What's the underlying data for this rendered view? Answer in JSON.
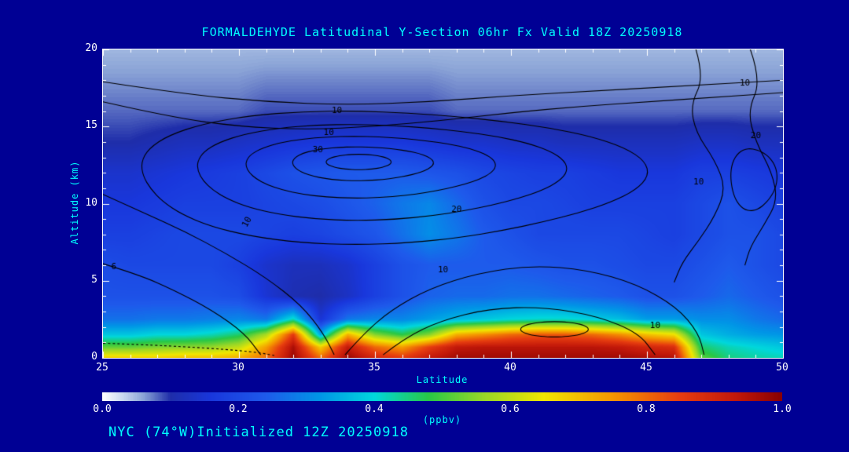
{
  "colors": {
    "background": "#000094",
    "frame": "#ffffff",
    "title_text": "#00ffff",
    "tick_text": "#ffffff",
    "axis_label_text": "#00ffff",
    "contour_line": "#000000"
  },
  "footer": {
    "annotation": "NYC (74°W)Initialized 12Z 20250918"
  },
  "chart_data": {
    "type": "heatmap",
    "title": "FORMALDEHYDE Latitudinal Y-Section 06hr  Fx Valid 18Z 20250918",
    "xlabel": "Latitude",
    "ylabel": "Altitude (km)",
    "units": "ppbv",
    "xlim": [
      25,
      50
    ],
    "ylim": [
      0,
      20
    ],
    "x_ticks": [
      25,
      30,
      35,
      40,
      45,
      50
    ],
    "y_ticks": [
      0,
      5,
      10,
      15,
      20
    ],
    "x_minor_step": 1,
    "y_minor_step": 1,
    "lats": [
      25,
      26,
      27,
      28,
      29,
      30,
      31,
      32,
      33,
      34,
      35,
      36,
      37,
      38,
      39,
      40,
      41,
      42,
      43,
      44,
      45,
      46,
      47,
      48,
      49,
      50
    ],
    "alt_levels_km": [
      0,
      0.7,
      1.5,
      2.5,
      4,
      6,
      8,
      10,
      12,
      14,
      16,
      20
    ],
    "values_ppbv_by_level": [
      [
        0.68,
        0.68,
        0.68,
        0.7,
        0.7,
        0.72,
        0.8,
        0.98,
        0.8,
        0.98,
        0.9,
        0.86,
        0.93,
        0.97,
        0.97,
        0.97,
        0.97,
        0.97,
        0.97,
        0.97,
        0.96,
        0.95,
        0.52,
        0.45,
        0.43,
        0.42
      ],
      [
        0.52,
        0.52,
        0.54,
        0.55,
        0.56,
        0.6,
        0.74,
        0.96,
        0.68,
        0.93,
        0.8,
        0.74,
        0.85,
        0.93,
        0.94,
        0.94,
        0.94,
        0.94,
        0.94,
        0.93,
        0.9,
        0.88,
        0.46,
        0.42,
        0.4,
        0.38
      ],
      [
        0.38,
        0.38,
        0.4,
        0.4,
        0.42,
        0.46,
        0.58,
        0.86,
        0.34,
        0.72,
        0.55,
        0.48,
        0.55,
        0.72,
        0.76,
        0.8,
        0.82,
        0.82,
        0.8,
        0.76,
        0.7,
        0.66,
        0.38,
        0.35,
        0.33,
        0.32
      ],
      [
        0.27,
        0.27,
        0.28,
        0.28,
        0.29,
        0.3,
        0.28,
        0.42,
        0.15,
        0.28,
        0.3,
        0.3,
        0.33,
        0.36,
        0.38,
        0.4,
        0.41,
        0.41,
        0.39,
        0.37,
        0.33,
        0.33,
        0.31,
        0.31,
        0.28,
        0.26
      ],
      [
        0.22,
        0.22,
        0.22,
        0.22,
        0.22,
        0.21,
        0.15,
        0.11,
        0.1,
        0.13,
        0.18,
        0.22,
        0.25,
        0.26,
        0.26,
        0.27,
        0.27,
        0.26,
        0.25,
        0.24,
        0.22,
        0.22,
        0.24,
        0.26,
        0.24,
        0.22
      ],
      [
        0.21,
        0.2,
        0.2,
        0.2,
        0.2,
        0.18,
        0.14,
        0.12,
        0.12,
        0.14,
        0.18,
        0.22,
        0.24,
        0.24,
        0.24,
        0.24,
        0.23,
        0.22,
        0.22,
        0.21,
        0.2,
        0.2,
        0.22,
        0.24,
        0.22,
        0.2
      ],
      [
        0.18,
        0.18,
        0.19,
        0.2,
        0.2,
        0.2,
        0.19,
        0.18,
        0.19,
        0.21,
        0.23,
        0.27,
        0.31,
        0.28,
        0.24,
        0.22,
        0.2,
        0.2,
        0.2,
        0.2,
        0.19,
        0.18,
        0.2,
        0.22,
        0.22,
        0.2
      ],
      [
        0.16,
        0.16,
        0.17,
        0.18,
        0.18,
        0.18,
        0.19,
        0.2,
        0.21,
        0.23,
        0.25,
        0.28,
        0.3,
        0.26,
        0.22,
        0.2,
        0.2,
        0.19,
        0.18,
        0.18,
        0.18,
        0.18,
        0.2,
        0.22,
        0.2,
        0.18
      ],
      [
        0.14,
        0.14,
        0.15,
        0.16,
        0.17,
        0.18,
        0.2,
        0.22,
        0.23,
        0.24,
        0.24,
        0.24,
        0.23,
        0.22,
        0.2,
        0.19,
        0.18,
        0.18,
        0.17,
        0.16,
        0.16,
        0.16,
        0.18,
        0.18,
        0.17,
        0.16
      ],
      [
        0.1,
        0.1,
        0.11,
        0.12,
        0.12,
        0.13,
        0.14,
        0.15,
        0.16,
        0.16,
        0.16,
        0.16,
        0.15,
        0.14,
        0.14,
        0.13,
        0.13,
        0.12,
        0.12,
        0.12,
        0.12,
        0.12,
        0.13,
        0.13,
        0.12,
        0.12
      ],
      [
        0.08,
        0.08,
        0.08,
        0.08,
        0.08,
        0.08,
        0.09,
        0.09,
        0.09,
        0.09,
        0.09,
        0.09,
        0.09,
        0.08,
        0.08,
        0.08,
        0.08,
        0.08,
        0.08,
        0.08,
        0.08,
        0.08,
        0.08,
        0.08,
        0.08,
        0.08
      ],
      [
        0.05,
        0.05,
        0.05,
        0.05,
        0.05,
        0.05,
        0.05,
        0.05,
        0.05,
        0.05,
        0.05,
        0.05,
        0.05,
        0.05,
        0.05,
        0.05,
        0.05,
        0.05,
        0.05,
        0.05,
        0.05,
        0.05,
        0.05,
        0.05,
        0.05,
        0.05
      ]
    ],
    "colormap": [
      [
        0.0,
        "#ffffff"
      ],
      [
        0.03,
        "#c8d8f0"
      ],
      [
        0.06,
        "#8ca5d7"
      ],
      [
        0.1,
        "#1e2daa"
      ],
      [
        0.16,
        "#1937dc"
      ],
      [
        0.24,
        "#1e5aeb"
      ],
      [
        0.32,
        "#0096e6"
      ],
      [
        0.4,
        "#00d7dc"
      ],
      [
        0.48,
        "#28c846"
      ],
      [
        0.56,
        "#96d728"
      ],
      [
        0.65,
        "#f0e600"
      ],
      [
        0.75,
        "#f59600"
      ],
      [
        0.85,
        "#e63c0f"
      ],
      [
        0.93,
        "#c3190a"
      ],
      [
        1.0,
        "#870000"
      ]
    ],
    "colorbar": {
      "min": 0.0,
      "max": 1.0,
      "ticks": [
        "0.0",
        "0.2",
        "0.4",
        "0.6",
        "0.8",
        "1.0"
      ],
      "label": "(ppbv)"
    },
    "contour_labels": [
      {
        "text": "10",
        "lat": 33.6,
        "km": 16.0
      },
      {
        "text": "10",
        "lat": 33.3,
        "km": 14.6
      },
      {
        "text": "30",
        "lat": 32.9,
        "km": 13.5
      },
      {
        "text": "20",
        "lat": 38.0,
        "km": 9.6
      },
      {
        "text": "10",
        "lat": 30.3,
        "km": 8.8,
        "rot": -62
      },
      {
        "text": "10",
        "lat": 37.5,
        "km": 5.7
      },
      {
        "text": "10",
        "lat": 45.3,
        "km": 2.1
      },
      {
        "text": "6",
        "lat": 25.4,
        "km": 5.9
      },
      {
        "text": "20",
        "lat": 49.0,
        "km": 14.4
      },
      {
        "text": "10",
        "lat": 48.6,
        "km": 17.8
      },
      {
        "text": "10",
        "lat": 46.9,
        "km": 11.4
      }
    ]
  }
}
